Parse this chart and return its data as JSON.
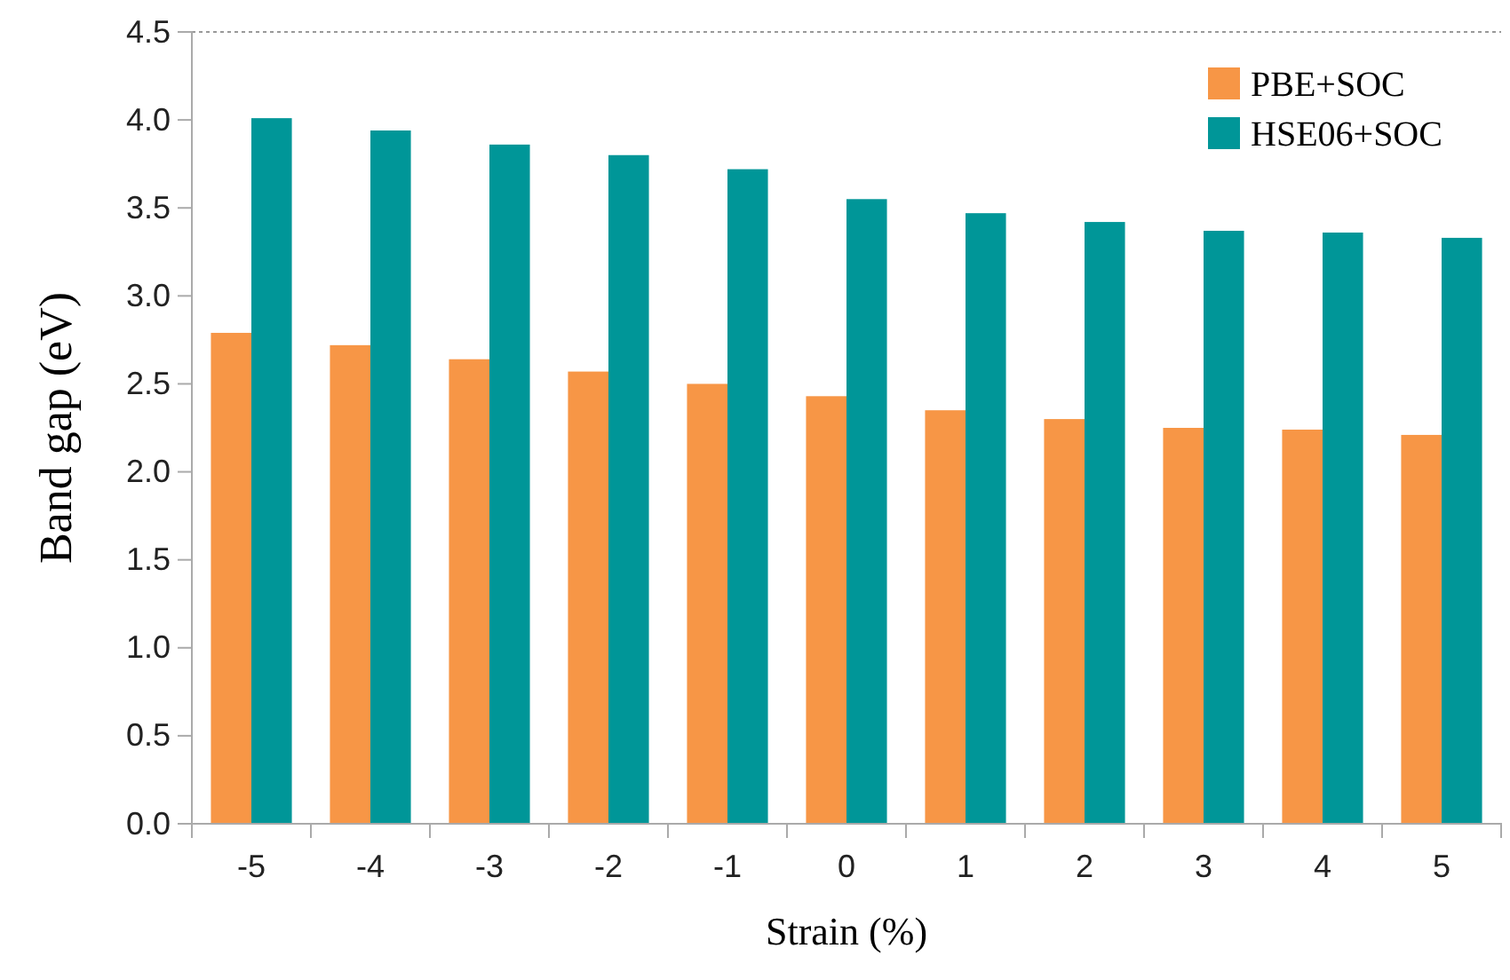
{
  "chart_data": {
    "type": "bar",
    "xlabel": "Strain (%)",
    "ylabel": "Band gap (eV)",
    "categories": [
      "-5",
      "-4",
      "-3",
      "-2",
      "-1",
      "0",
      "1",
      "2",
      "3",
      "4",
      "5"
    ],
    "series": [
      {
        "name": "PBE+SOC",
        "color": "#f79646",
        "values": [
          2.79,
          2.72,
          2.64,
          2.57,
          2.5,
          2.43,
          2.35,
          2.3,
          2.25,
          2.24,
          2.21
        ]
      },
      {
        "name": "HSE06+SOC",
        "color": "#009698",
        "values": [
          4.01,
          3.94,
          3.86,
          3.8,
          3.72,
          3.55,
          3.47,
          3.42,
          3.37,
          3.36,
          3.33
        ]
      }
    ],
    "ylim": [
      0,
      4.5
    ],
    "yticks": [
      {
        "value": 0,
        "label": "0.0"
      },
      0.5,
      {
        "value": 1,
        "label": "1.0"
      },
      1.5,
      {
        "value": 2,
        "label": "2.0"
      },
      2.5,
      {
        "value": 3,
        "label": "3.0"
      },
      3.5,
      {
        "value": 4,
        "label": "4.0"
      },
      4.5
    ],
    "legend": "top right"
  }
}
